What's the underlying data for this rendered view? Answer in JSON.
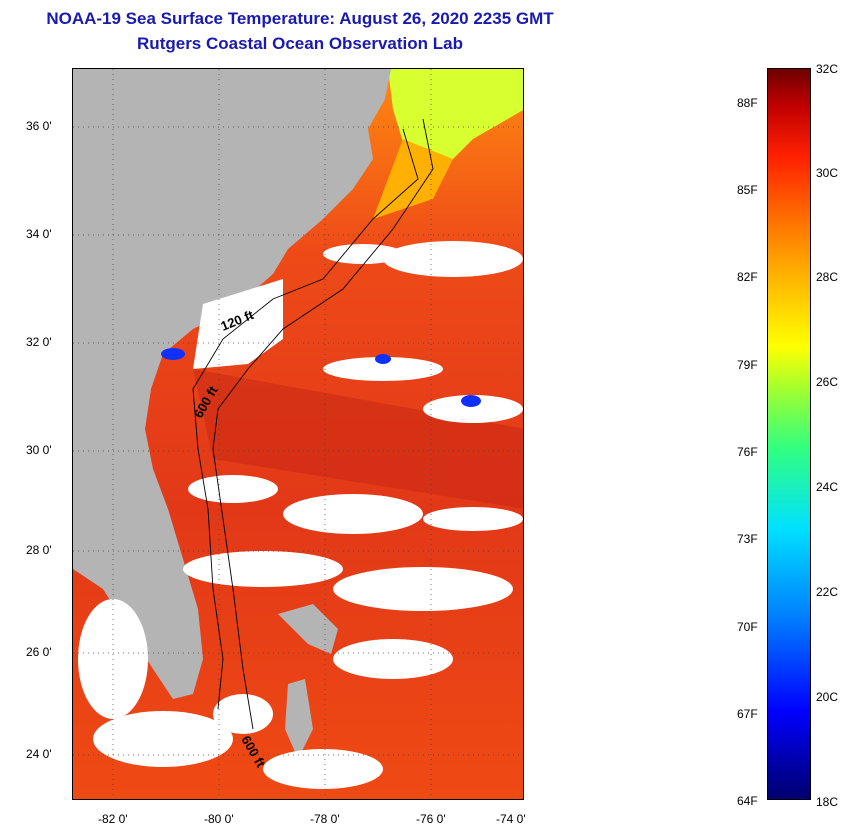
{
  "header": {
    "title": "NOAA-19 Sea Surface Temperature:  August 26, 2020 2235 GMT",
    "subtitle": "Rutgers Coastal Ocean Observation Lab"
  },
  "map": {
    "lat_ticks": [
      "36 0'",
      "34 0'",
      "32 0'",
      "30 0'",
      "28 0'",
      "26 0'",
      "24 0'"
    ],
    "lon_ticks": [
      "-82 0'",
      "-80 0'",
      "-78 0'",
      "-76 0'",
      "-74 0'"
    ],
    "contour_labels": [
      "120 ft",
      "600 ft",
      "600 ft"
    ],
    "colors": {
      "land": "#b4b4b4",
      "cloud": "#ffffff",
      "warm_water": "#e8401a"
    }
  },
  "colorbar": {
    "fahrenheit": [
      "88F",
      "85F",
      "82F",
      "79F",
      "76F",
      "73F",
      "70F",
      "67F",
      "64F"
    ],
    "celsius": [
      "32C",
      "30C",
      "28C",
      "26C",
      "24C",
      "22C",
      "20C",
      "18C"
    ]
  }
}
